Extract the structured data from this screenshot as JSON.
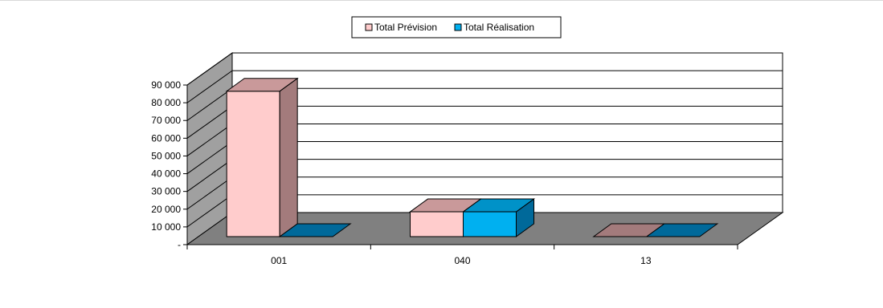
{
  "chart_data": {
    "type": "bar",
    "style": "3d-clustered-column",
    "categories": [
      "001",
      "040",
      "13"
    ],
    "series": [
      {
        "name": "Total Prévision",
        "values": [
          82000,
          14000,
          0
        ],
        "color": "#ffcccc",
        "top_color": "#c9999a",
        "side_color": "#a37b7c"
      },
      {
        "name": "Total Réalisation",
        "values": [
          0,
          14000,
          0
        ],
        "color": "#00b0f0",
        "top_color": "#0092c8",
        "side_color": "#00699a"
      }
    ],
    "y_tick_labels": [
      "-",
      "10 000",
      "20 000",
      "30 000",
      "40 000",
      "50 000",
      "60 000",
      "70 000",
      "80 000",
      "90 000"
    ],
    "ylim": [
      0,
      90000
    ],
    "grid": true,
    "legend_position": "top",
    "wall_color": "#ffffff",
    "floor_color": "#808080",
    "side_wall_color": "#a0a0a0"
  }
}
